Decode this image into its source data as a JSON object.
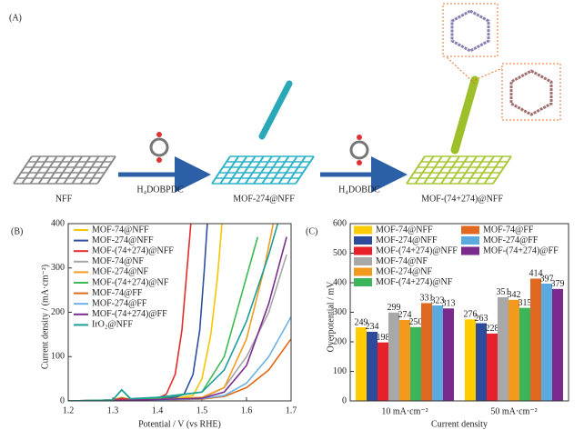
{
  "panel_a": {
    "label": "(A)",
    "nodes": [
      "NFF",
      "MOF-274@NFF",
      "MOF-(74+274)@NFF"
    ],
    "reagents": [
      "H₄DOBPDC",
      "H₄DOBDC"
    ]
  },
  "chart_data": [
    {
      "type": "line",
      "label": "(B)",
      "x_label": "Potential / V (vs RHE)",
      "y_label": "Current density / (mA·cm⁻²)",
      "xlim": [
        1.2,
        1.7
      ],
      "xticks": [
        1.2,
        1.3,
        1.4,
        1.5,
        1.6,
        1.7
      ],
      "ylim": [
        0,
        400
      ],
      "yticks": [
        0,
        100,
        200,
        300,
        400
      ],
      "legend": "upper left",
      "series": [
        {
          "name": "MOF-74@NFF",
          "color": "#f7c600",
          "x": [
            1.2,
            1.3,
            1.32,
            1.34,
            1.4,
            1.45,
            1.48,
            1.5,
            1.52,
            1.535,
            1.545
          ],
          "values": [
            0,
            2,
            8,
            3,
            5,
            7,
            12,
            50,
            150,
            280,
            400
          ]
        },
        {
          "name": "MOF-274@NFF",
          "color": "#2f4f9f",
          "x": [
            1.2,
            1.3,
            1.32,
            1.34,
            1.4,
            1.44,
            1.46,
            1.48,
            1.495,
            1.505,
            1.512
          ],
          "values": [
            0,
            2,
            6,
            3,
            5,
            8,
            15,
            60,
            160,
            290,
            400
          ]
        },
        {
          "name": "MOF-(74+274)@NFF",
          "color": "#e52b2b",
          "x": [
            1.2,
            1.3,
            1.32,
            1.34,
            1.4,
            1.42,
            1.44,
            1.455,
            1.465,
            1.475
          ],
          "values": [
            0,
            2,
            5,
            3,
            6,
            15,
            60,
            160,
            280,
            400
          ]
        },
        {
          "name": "MOF-74@NF",
          "color": "#a6a6a6",
          "x": [
            1.2,
            1.3,
            1.4,
            1.5,
            1.55,
            1.6,
            1.65,
            1.69
          ],
          "values": [
            0,
            1,
            3,
            6,
            30,
            100,
            200,
            330
          ]
        },
        {
          "name": "MOF-274@NF",
          "color": "#f39c1f",
          "x": [
            1.2,
            1.3,
            1.4,
            1.5,
            1.55,
            1.6,
            1.64,
            1.66
          ],
          "values": [
            0,
            1,
            3,
            8,
            30,
            140,
            300,
            400
          ]
        },
        {
          "name": "MOF-(74+274)@NF",
          "color": "#3cba54",
          "x": [
            1.2,
            1.3,
            1.32,
            1.34,
            1.4,
            1.5,
            1.55,
            1.6,
            1.625
          ],
          "values": [
            0,
            2,
            25,
            4,
            6,
            20,
            100,
            280,
            370
          ]
        },
        {
          "name": "MOF-74@FF",
          "color": "#e06a1a",
          "x": [
            1.2,
            1.3,
            1.4,
            1.5,
            1.55,
            1.6,
            1.65,
            1.7
          ],
          "values": [
            0,
            1,
            2,
            4,
            10,
            30,
            70,
            140
          ]
        },
        {
          "name": "MOF-274@FF",
          "color": "#6fb1e4",
          "x": [
            1.2,
            1.3,
            1.4,
            1.5,
            1.55,
            1.6,
            1.65,
            1.7
          ],
          "values": [
            0,
            1,
            2,
            5,
            12,
            40,
            100,
            190
          ]
        },
        {
          "name": "MOF-(74+274)@FF",
          "color": "#7b2c8f",
          "x": [
            1.2,
            1.3,
            1.4,
            1.5,
            1.55,
            1.6,
            1.65,
            1.69
          ],
          "values": [
            0,
            1,
            3,
            6,
            20,
            80,
            220,
            370
          ]
        },
        {
          "name": "IrO₂@NFF",
          "color": "#1a9e9a",
          "x": [
            1.2,
            1.3,
            1.32,
            1.34,
            1.4,
            1.5,
            1.55,
            1.6,
            1.65,
            1.67
          ],
          "values": [
            0,
            2,
            25,
            5,
            8,
            20,
            70,
            180,
            330,
            400
          ]
        }
      ]
    },
    {
      "type": "bar",
      "label": "(C)",
      "x_label": "Current density",
      "y_label": "Overpotential / mV",
      "categories": [
        "10 mA·cm⁻²",
        "50 mA·cm⁻²"
      ],
      "ylim": [
        0,
        600
      ],
      "yticks": [
        0,
        100,
        200,
        300,
        400,
        500,
        600
      ],
      "legend": "top",
      "series": [
        {
          "name": "MOF-74@NFF",
          "color": "#ffcc00",
          "values": [
            249,
            276
          ]
        },
        {
          "name": "MOF-274@NFF",
          "color": "#2e4a9a",
          "values": [
            234,
            263
          ]
        },
        {
          "name": "MOF-(74+274)@NFF",
          "color": "#e8202a",
          "values": [
            198,
            228
          ]
        },
        {
          "name": "MOF-74@NF",
          "color": "#a8a8a8",
          "values": [
            299,
            351
          ]
        },
        {
          "name": "MOF-274@NF",
          "color": "#f39a1e",
          "values": [
            274,
            342
          ]
        },
        {
          "name": "MOF-(74+274)@NF",
          "color": "#3cb55a",
          "values": [
            250,
            315
          ]
        },
        {
          "name": "MOF-74@FF",
          "color": "#e06820",
          "values": [
            331,
            414
          ]
        },
        {
          "name": "MOF-274@FF",
          "color": "#5aaae0",
          "values": [
            323,
            397
          ]
        },
        {
          "name": "MOF-(74+274)@FF",
          "color": "#7a2a8c",
          "values": [
            313,
            379
          ]
        }
      ]
    }
  ]
}
